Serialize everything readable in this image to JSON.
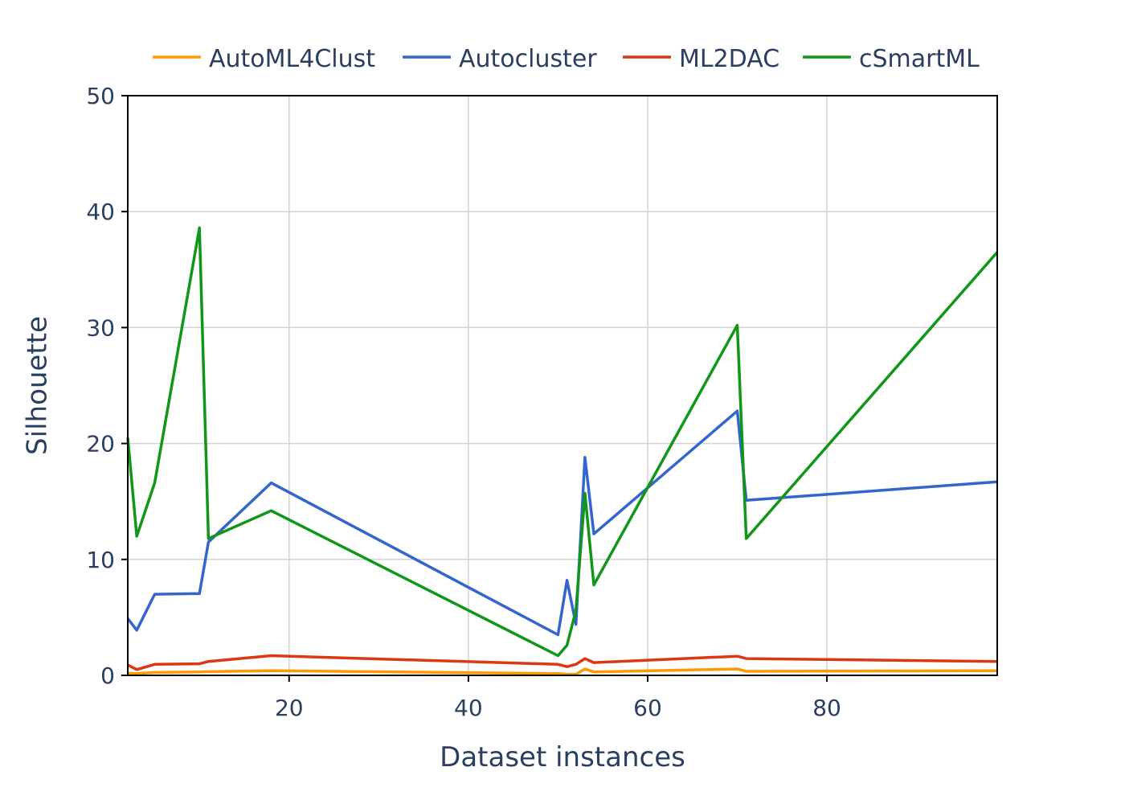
{
  "chart_data": {
    "type": "line",
    "xlabel": "Dataset instances",
    "ylabel": "Silhouette",
    "xlim": [
      2,
      99
    ],
    "ylim": [
      0,
      50
    ],
    "xticks": [
      20,
      40,
      60,
      80
    ],
    "yticks": [
      0,
      10,
      20,
      30,
      40,
      50
    ],
    "grid": true,
    "legend_position": "top",
    "x": [
      2,
      3,
      5,
      10,
      11,
      18,
      50,
      51,
      52,
      53,
      54,
      70,
      71,
      99
    ],
    "series": [
      {
        "name": "AutoML4Clust",
        "color": "#ff9900",
        "values": [
          0.2,
          0.15,
          0.25,
          0.3,
          0.32,
          0.4,
          0.15,
          0.1,
          0.1,
          0.55,
          0.3,
          0.55,
          0.35,
          0.4
        ]
      },
      {
        "name": "Autocluster",
        "color": "#3366cc",
        "values": [
          4.9,
          3.9,
          7.0,
          7.05,
          11.5,
          16.6,
          3.5,
          8.2,
          4.4,
          18.8,
          12.2,
          22.8,
          15.1,
          16.7
        ]
      },
      {
        "name": "ML2DAC",
        "color": "#dc3912",
        "values": [
          0.9,
          0.5,
          0.95,
          1.0,
          1.2,
          1.7,
          0.95,
          0.75,
          0.95,
          1.45,
          1.1,
          1.65,
          1.45,
          1.2
        ]
      },
      {
        "name": "cSmartML",
        "color": "#109618",
        "values": [
          20.5,
          12.0,
          16.6,
          38.6,
          11.8,
          14.2,
          1.7,
          2.6,
          5.6,
          15.7,
          7.8,
          30.2,
          11.8,
          36.5
        ]
      }
    ]
  }
}
